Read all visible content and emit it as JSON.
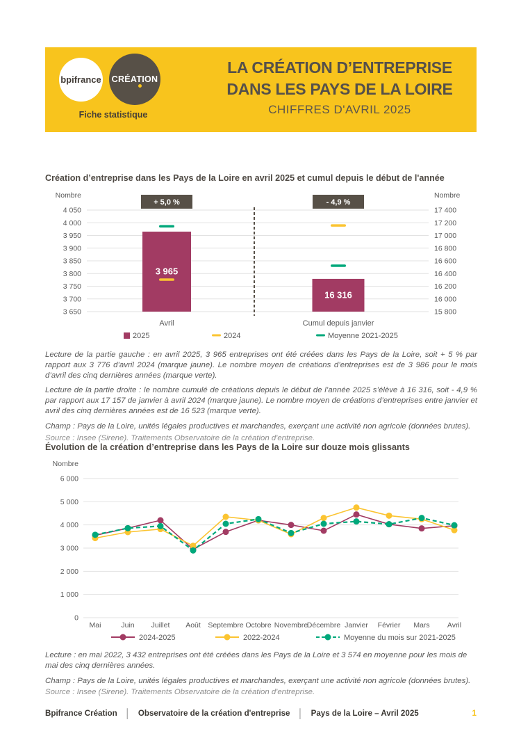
{
  "header": {
    "logo_bpifrance": "bpifrance",
    "logo_creation": "CRÉATION",
    "tagline": "Fiche statistique",
    "title_line1": "LA CRÉATION D’ENTREPRISE",
    "title_line2": "DANS LES PAYS DE LA LOIRE",
    "subtitle": "CHIFFRES D'AVRIL 2025"
  },
  "colors": {
    "banner_yellow": "#F8C41D",
    "dark_brown": "#575047",
    "magenta_2025": "#A23B63",
    "gold_2024": "#FBC431",
    "green_moyenne": "#00A87B",
    "grid_gray": "#E2E2E2",
    "axis_text": "#595959"
  },
  "chart_data": [
    {
      "type": "bar",
      "title": "Création d’entreprise dans les Pays de la Loire en avril 2025 et cumul depuis le début de l'année",
      "axis_label_left": "Nombre",
      "axis_label_right": "Nombre",
      "left_axis": {
        "min": 3650,
        "max": 4050,
        "step": 50
      },
      "right_axis": {
        "min": 15800,
        "max": 17400,
        "step": 200
      },
      "groups": [
        {
          "category": "Avril",
          "axis": "left",
          "badge": "+ 5,0 %",
          "value_2025": 3965,
          "marker_2024": 3776,
          "marker_moyenne": 3986
        },
        {
          "category": "Cumul depuis janvier",
          "axis": "right",
          "badge": "- 4,9 %",
          "value_2025": 16316,
          "marker_2024": 17157,
          "marker_moyenne": 16523
        }
      ],
      "legend": [
        "2025",
        "2024",
        "Moyenne 2021-2025"
      ]
    },
    {
      "type": "line",
      "title": "Évolution de la création d’entreprise dans les Pays de la Loire sur douze mois glissants",
      "ylabel": "Nombre",
      "ylim": [
        0,
        6000
      ],
      "ytick_step": 1000,
      "grid": true,
      "legend_position": "bottom",
      "categories": [
        "Mai",
        "Juin",
        "Juillet",
        "Août",
        "Septembre",
        "Octobre",
        "Novembre",
        "Décembre",
        "Janvier",
        "Février",
        "Mars",
        "Avril"
      ],
      "series": [
        {
          "name": "2024-2025",
          "style": "solid",
          "color": "#A23B63",
          "values": [
            3550,
            3860,
            4200,
            2950,
            3700,
            4200,
            4000,
            3750,
            4450,
            4030,
            3850,
            3965
          ]
        },
        {
          "name": "2022-2024",
          "style": "solid",
          "color": "#FBC431",
          "values": [
            3432,
            3690,
            3820,
            3100,
            4350,
            4200,
            3600,
            4300,
            4750,
            4400,
            4250,
            3776
          ]
        },
        {
          "name": "Moyenne du mois sur 2021-2025",
          "style": "dashed",
          "color": "#00A87B",
          "values": [
            3574,
            3860,
            3950,
            2900,
            4050,
            4250,
            3650,
            4050,
            4150,
            4030,
            4300,
            3986
          ]
        }
      ]
    }
  ],
  "texts": {
    "lecture_gauche": "Lecture de la partie gauche : en avril 2025, 3 965 entreprises ont été créées dans les Pays de la Loire, soit + 5 % par rapport aux 3 776 d’avril 2024 (marque jaune). Le nombre moyen de créations d’entreprises est de 3 986 pour le mois d’avril des cinq dernières années (marque verte).",
    "lecture_droite": "Lecture de la partie droite : le nombre cumulé de créations depuis le début de l’année 2025 s’élève à 16 316, soit - 4,9 % par rapport aux 17 157 de janvier à avril 2024 (marque jaune). Le nombre moyen de créations d’entreprises entre janvier et avril des cinq dernières années est de 16 523 (marque verte).",
    "lecture_2": "Lecture : en mai 2022, 3 432 entreprises ont été créées dans les Pays de la Loire et 3 574 en moyenne pour les mois de mai des cinq dernières années.",
    "champ": "Champ : Pays de la Loire, unités légales productives et marchandes, exerçant une activité non agricole (données brutes).",
    "source": "Source : Insee (Sirene). Traitements Observatoire de la création d'entreprise."
  },
  "footer": {
    "items": [
      "Bpifrance Création",
      "Observatoire de la création d'entreprise",
      "Pays de la Loire – Avril 2025"
    ],
    "separator": "│",
    "page": "1"
  }
}
